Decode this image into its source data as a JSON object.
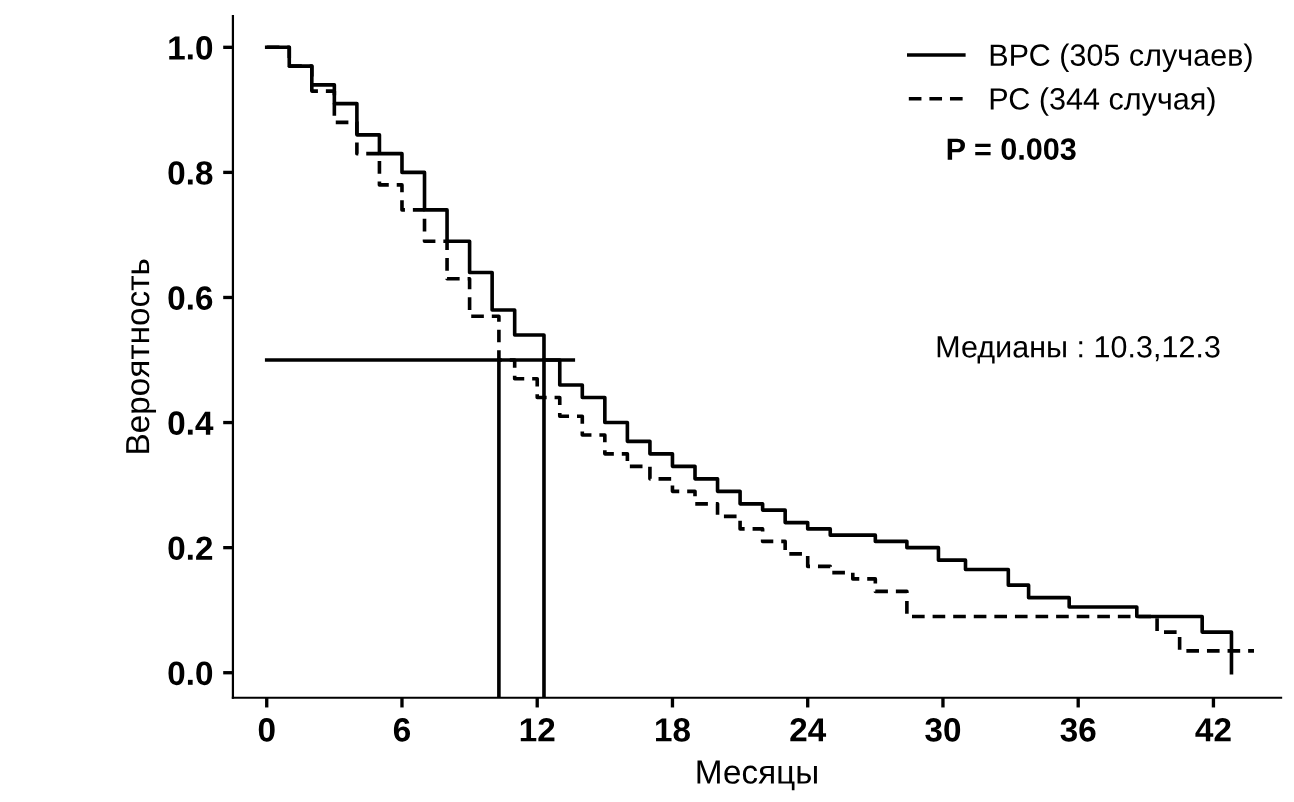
{
  "chart_data": {
    "type": "step",
    "xlabel": "Месяцы",
    "ylabel": "Вероятность",
    "xlim": [
      -1.5,
      45
    ],
    "ylim": [
      -0.04,
      1.05
    ],
    "xticks": [
      0,
      6,
      12,
      18,
      24,
      30,
      36,
      42
    ],
    "yticks": [
      {
        "value": 0,
        "label": "0.0"
      },
      {
        "value": 0.2,
        "label": "0.2"
      },
      {
        "value": 0.4,
        "label": "0.4"
      },
      {
        "value": 0.6,
        "label": "0.6"
      },
      {
        "value": 0.8,
        "label": "0.8"
      },
      {
        "value": 1,
        "label": "1.0"
      }
    ],
    "grid": false,
    "legend": "top right",
    "marker": "none",
    "series": [
      {
        "name": "ВРС (305 случаев)",
        "color": "#000000",
        "line_style": "solid",
        "x": [
          0,
          1,
          2,
          3,
          4,
          5,
          6,
          7,
          8,
          9,
          10,
          11,
          12.3,
          13,
          14,
          15,
          16,
          17,
          18,
          19,
          20,
          21,
          22,
          23,
          24,
          25,
          27,
          28.4,
          29.8,
          31,
          32.9,
          33.8,
          35.6,
          38.6,
          41.5,
          42.8,
          42.8
        ],
        "values": [
          1.0,
          0.97,
          0.94,
          0.91,
          0.86,
          0.83,
          0.8,
          0.74,
          0.69,
          0.64,
          0.58,
          0.54,
          0.5,
          0.46,
          0.44,
          0.4,
          0.37,
          0.35,
          0.33,
          0.31,
          0.29,
          0.27,
          0.26,
          0.24,
          0.23,
          0.22,
          0.21,
          0.2,
          0.18,
          0.165,
          0.14,
          0.12,
          0.105,
          0.09,
          0.065,
          0.065,
          0.0
        ]
      },
      {
        "name": "РС (344 случая)",
        "color": "#000000",
        "line_style": "dashed",
        "x": [
          0,
          1,
          2,
          3,
          4,
          5,
          6,
          7,
          8,
          9,
          10.3,
          11,
          12,
          13,
          14,
          15,
          16,
          17,
          18,
          19,
          20,
          21,
          22,
          23,
          24,
          25,
          26,
          27,
          28.4,
          39.5,
          40.5,
          43.8
        ],
        "values": [
          1.0,
          0.97,
          0.93,
          0.88,
          0.83,
          0.78,
          0.74,
          0.69,
          0.63,
          0.57,
          0.5,
          0.47,
          0.44,
          0.41,
          0.38,
          0.35,
          0.33,
          0.31,
          0.29,
          0.27,
          0.25,
          0.23,
          0.21,
          0.19,
          0.17,
          0.16,
          0.15,
          0.13,
          0.09,
          0.065,
          0.035,
          0.035
        ]
      },
      {
        "type": "line",
        "color": "#000000",
        "line_style": "solid",
        "x": [
          0,
          13.6
        ],
        "values": [
          0.5,
          0.5
        ]
      },
      {
        "type": "line",
        "color": "#000000",
        "line_style": "solid",
        "x": [
          10.3,
          10.3
        ],
        "values": [
          -0.04,
          0.5
        ]
      },
      {
        "type": "line",
        "color": "#000000",
        "line_style": "solid",
        "x": [
          12.3,
          12.3
        ],
        "values": [
          -0.04,
          0.5
        ]
      }
    ],
    "annotations": [
      "P = 0.003",
      "Медианы : 10.3,12.3"
    ]
  }
}
